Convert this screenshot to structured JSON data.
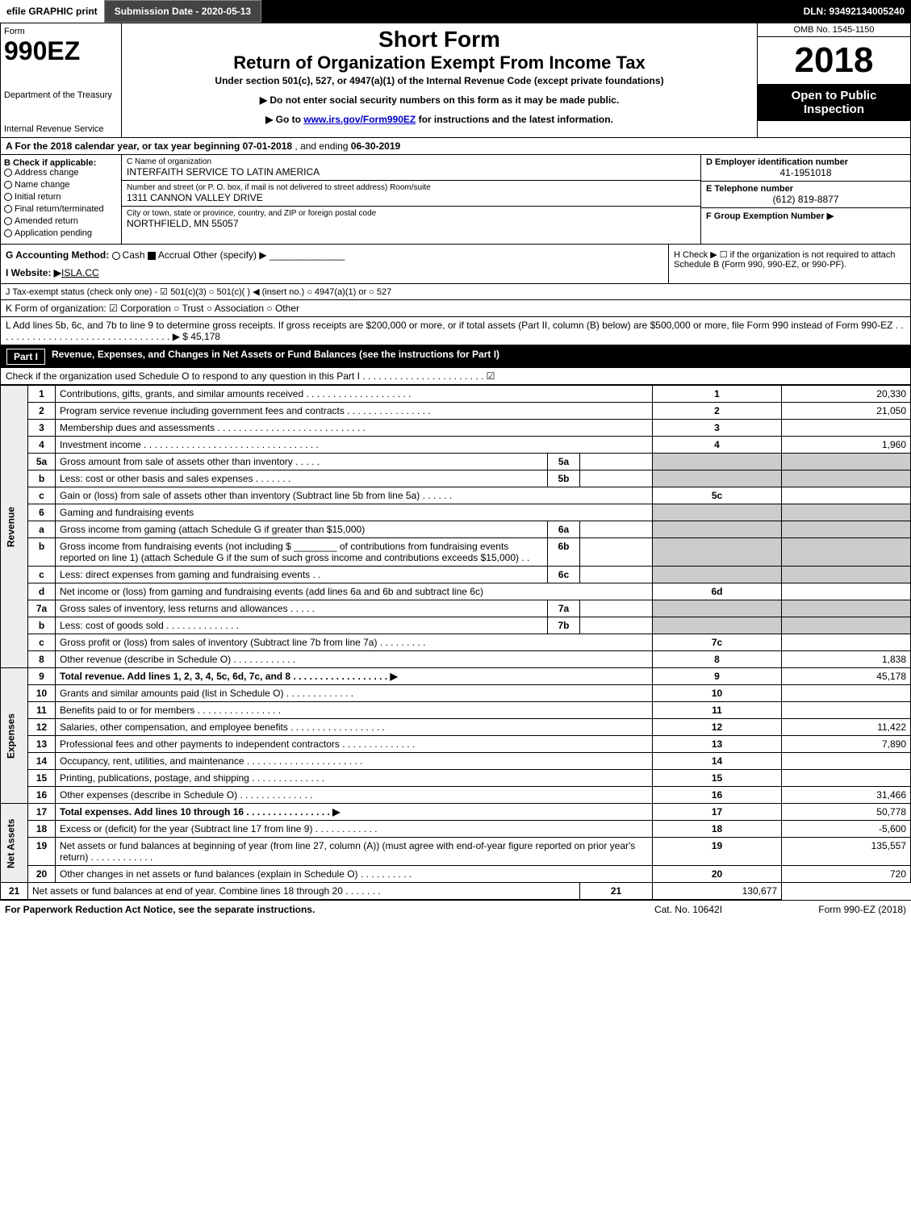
{
  "topbar": {
    "efile": "efile GRAPHIC print",
    "submission": "Submission Date - 2020-05-13",
    "dln": "DLN: 93492134005240"
  },
  "header": {
    "form_label": "Form",
    "form_no": "990EZ",
    "dept": "Department of the Treasury",
    "irs": "Internal Revenue Service",
    "short": "Short Form",
    "return_title": "Return of Organization Exempt From Income Tax",
    "subtitle": "Under section 501(c), 527, or 4947(a)(1) of the Internal Revenue Code (except private foundations)",
    "warn": "▶ Do not enter social security numbers on this form as it may be made public.",
    "goto_pre": "▶ Go to ",
    "goto_link": "www.irs.gov/Form990EZ",
    "goto_post": " for instructions and the latest information.",
    "omb": "OMB No. 1545-1150",
    "year": "2018",
    "open": "Open to Public Inspection"
  },
  "lineA": {
    "pre": "A For the 2018 calendar year, or tax year beginning ",
    "begin": "07-01-2018",
    "mid": " , and ending ",
    "end": "06-30-2019"
  },
  "colB": {
    "title": "B Check if applicable:",
    "items": [
      "Address change",
      "Name change",
      "Initial return",
      "Final return/terminated",
      "Amended return",
      "Application pending"
    ]
  },
  "colC": {
    "name_label": "C Name of organization",
    "name": "INTERFAITH SERVICE TO LATIN AMERICA",
    "street_label": "Number and street (or P. O. box, if mail is not delivered to street address)     Room/suite",
    "street": "1311 CANNON VALLEY DRIVE",
    "city_label": "City or town, state or province, country, and ZIP or foreign postal code",
    "city": "NORTHFIELD, MN  55057"
  },
  "colD": {
    "ein_label": "D Employer identification number",
    "ein": "41-1951018",
    "tel_label": "E Telephone number",
    "tel": "(612) 819-8877",
    "grp_label": "F Group Exemption Number  ▶"
  },
  "gLine": {
    "label": "G Accounting Method:",
    "cash": "Cash",
    "accrual": "Accrual",
    "other": "Other (specify) ▶",
    "h": "H  Check ▶ ☐ if the organization is not required to attach Schedule B (Form 990, 990-EZ, or 990-PF)."
  },
  "iLine": {
    "label": "I Website: ▶",
    "val": "ISLA.CC"
  },
  "jLine": "J Tax-exempt status (check only one) - ☑ 501(c)(3)  ○ 501(c)(  ) ◀ (insert no.)  ○ 4947(a)(1) or  ○ 527",
  "kLine": "K Form of organization:  ☑ Corporation  ○ Trust  ○ Association  ○ Other",
  "lLine": {
    "text": "L Add lines 5b, 6c, and 7b to line 9 to determine gross receipts. If gross receipts are $200,000 or more, or if total assets (Part II, column (B) below) are $500,000 or more, file Form 990 instead of Form 990-EZ . . . . . . . . . . . . . . . . . . . . . . . . . . . . . . . . . ▶ $ ",
    "amount": "45,178"
  },
  "part1": {
    "label": "Part I",
    "title": "Revenue, Expenses, and Changes in Net Assets or Fund Balances (see the instructions for Part I)",
    "check": "Check if the organization used Schedule O to respond to any question in this Part I . . . . . . . . . . . . . . . . . . . . . . . ☑"
  },
  "sides": {
    "rev": "Revenue",
    "exp": "Expenses",
    "na": "Net Assets"
  },
  "rows": [
    {
      "n": "1",
      "d": "Contributions, gifts, grants, and similar amounts received . . . . . . . . . . . . . . . . . . . .",
      "rn": "1",
      "v": "20,330"
    },
    {
      "n": "2",
      "d": "Program service revenue including government fees and contracts . . . . . . . . . . . . . . . .",
      "rn": "2",
      "v": "21,050"
    },
    {
      "n": "3",
      "d": "Membership dues and assessments . . . . . . . . . . . . . . . . . . . . . . . . . . . .",
      "rn": "3",
      "v": ""
    },
    {
      "n": "4",
      "d": "Investment income . . . . . . . . . . . . . . . . . . . . . . . . . . . . . . . . .",
      "rn": "4",
      "v": "1,960"
    },
    {
      "n": "5a",
      "d": "Gross amount from sale of assets other than inventory . . . . .",
      "in": "5a",
      "iv": ""
    },
    {
      "n": "b",
      "d": "Less: cost or other basis and sales expenses . . . . . . .",
      "in": "5b",
      "iv": ""
    },
    {
      "n": "c",
      "d": "Gain or (loss) from sale of assets other than inventory (Subtract line 5b from line 5a) . . . . . .",
      "rn": "5c",
      "v": ""
    },
    {
      "n": "6",
      "d": "Gaming and fundraising events"
    },
    {
      "n": "a",
      "d": "Gross income from gaming (attach Schedule G if greater than $15,000)",
      "in": "6a",
      "iv": ""
    },
    {
      "n": "b",
      "d": "Gross income from fundraising events (not including $ ________ of contributions from fundraising events reported on line 1) (attach Schedule G if the sum of such gross income and contributions exceeds $15,000)    . .",
      "in": "6b",
      "iv": ""
    },
    {
      "n": "c",
      "d": "Less: direct expenses from gaming and fundraising events    . .",
      "in": "6c",
      "iv": ""
    },
    {
      "n": "d",
      "d": "Net income or (loss) from gaming and fundraising events (add lines 6a and 6b and subtract line 6c)",
      "rn": "6d",
      "v": ""
    },
    {
      "n": "7a",
      "d": "Gross sales of inventory, less returns and allowances . . . . .",
      "in": "7a",
      "iv": ""
    },
    {
      "n": "b",
      "d": "Less: cost of goods sold        . . . . . . . . . . . . . .",
      "in": "7b",
      "iv": ""
    },
    {
      "n": "c",
      "d": "Gross profit or (loss) from sales of inventory (Subtract line 7b from line 7a) . . . . . . . . .",
      "rn": "7c",
      "v": ""
    },
    {
      "n": "8",
      "d": "Other revenue (describe in Schedule O)                  . . . . . . . . . . . .",
      "rn": "8",
      "v": "1,838"
    },
    {
      "n": "9",
      "d": "Total revenue. Add lines 1, 2, 3, 4, 5c, 6d, 7c, and 8 . . . . . . . . . . . . . . . . . . ▶",
      "rn": "9",
      "v": "45,178",
      "bold": true
    },
    {
      "n": "10",
      "d": "Grants and similar amounts paid (list in Schedule O)        . . . . . . . . . . . . .",
      "rn": "10",
      "v": ""
    },
    {
      "n": "11",
      "d": "Benefits paid to or for members              . . . . . . . . . . . . . . . .",
      "rn": "11",
      "v": ""
    },
    {
      "n": "12",
      "d": "Salaries, other compensation, and employee benefits . . . . . . . . . . . . . . . . . .",
      "rn": "12",
      "v": "11,422"
    },
    {
      "n": "13",
      "d": "Professional fees and other payments to independent contractors . . . . . . . . . . . . . .",
      "rn": "13",
      "v": "7,890"
    },
    {
      "n": "14",
      "d": "Occupancy, rent, utilities, and maintenance . . . . . . . . . . . . . . . . . . . . . .",
      "rn": "14",
      "v": ""
    },
    {
      "n": "15",
      "d": "Printing, publications, postage, and shipping          . . . . . . . . . . . . . .",
      "rn": "15",
      "v": ""
    },
    {
      "n": "16",
      "d": "Other expenses (describe in Schedule O)            . . . . . . . . . . . . . .",
      "rn": "16",
      "v": "31,466"
    },
    {
      "n": "17",
      "d": "Total expenses. Add lines 10 through 16          . . . . . . . . . . . . . . . . ▶",
      "rn": "17",
      "v": "50,778",
      "bold": true
    },
    {
      "n": "18",
      "d": "Excess or (deficit) for the year (Subtract line 17 from line 9)      . . . . . . . . . . . .",
      "rn": "18",
      "v": "-5,600"
    },
    {
      "n": "19",
      "d": "Net assets or fund balances at beginning of year (from line 27, column (A)) (must agree with end-of-year figure reported on prior year's return)          . . . . . . . . . . . .",
      "rn": "19",
      "v": "135,557"
    },
    {
      "n": "20",
      "d": "Other changes in net assets or fund balances (explain in Schedule O)    . . . . . . . . . .",
      "rn": "20",
      "v": "720"
    },
    {
      "n": "21",
      "d": "Net assets or fund balances at end of year. Combine lines 18 through 20      . . . . . . .",
      "rn": "21",
      "v": "130,677"
    }
  ],
  "footer": {
    "l": "For Paperwork Reduction Act Notice, see the separate instructions.",
    "c": "Cat. No. 10642I",
    "r": "Form 990-EZ (2018)"
  }
}
